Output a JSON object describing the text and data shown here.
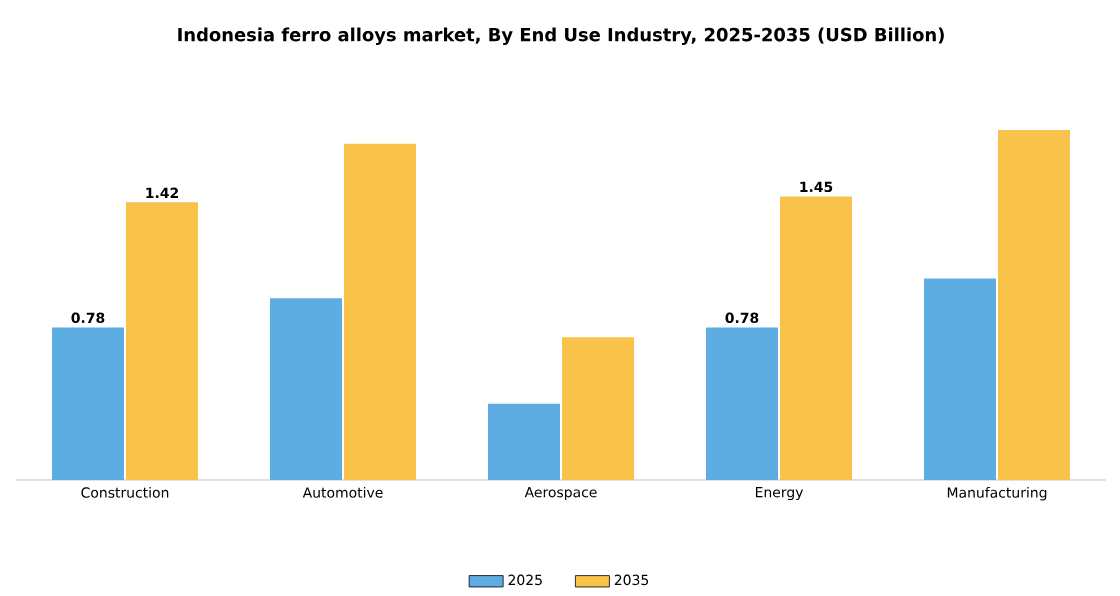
{
  "chart_data": {
    "type": "bar",
    "title": "Indonesia ferro alloys market, By End Use Industry, 2025-2035 (USD Billion)",
    "categories": [
      "Construction",
      "Automotive",
      "Aerospace",
      "Energy",
      "Manufacturing"
    ],
    "series": [
      {
        "name": "2025",
        "color": "#5dade2",
        "values": [
          0.78,
          0.93,
          0.39,
          0.78,
          1.03
        ],
        "value_labels": [
          "0.78",
          null,
          null,
          "0.78",
          null
        ]
      },
      {
        "name": "2035",
        "color": "#f9c24b",
        "values": [
          1.42,
          1.72,
          0.73,
          1.45,
          1.79
        ],
        "value_labels": [
          "1.42",
          null,
          null,
          "1.45",
          null
        ]
      }
    ],
    "legend": "bottom"
  }
}
